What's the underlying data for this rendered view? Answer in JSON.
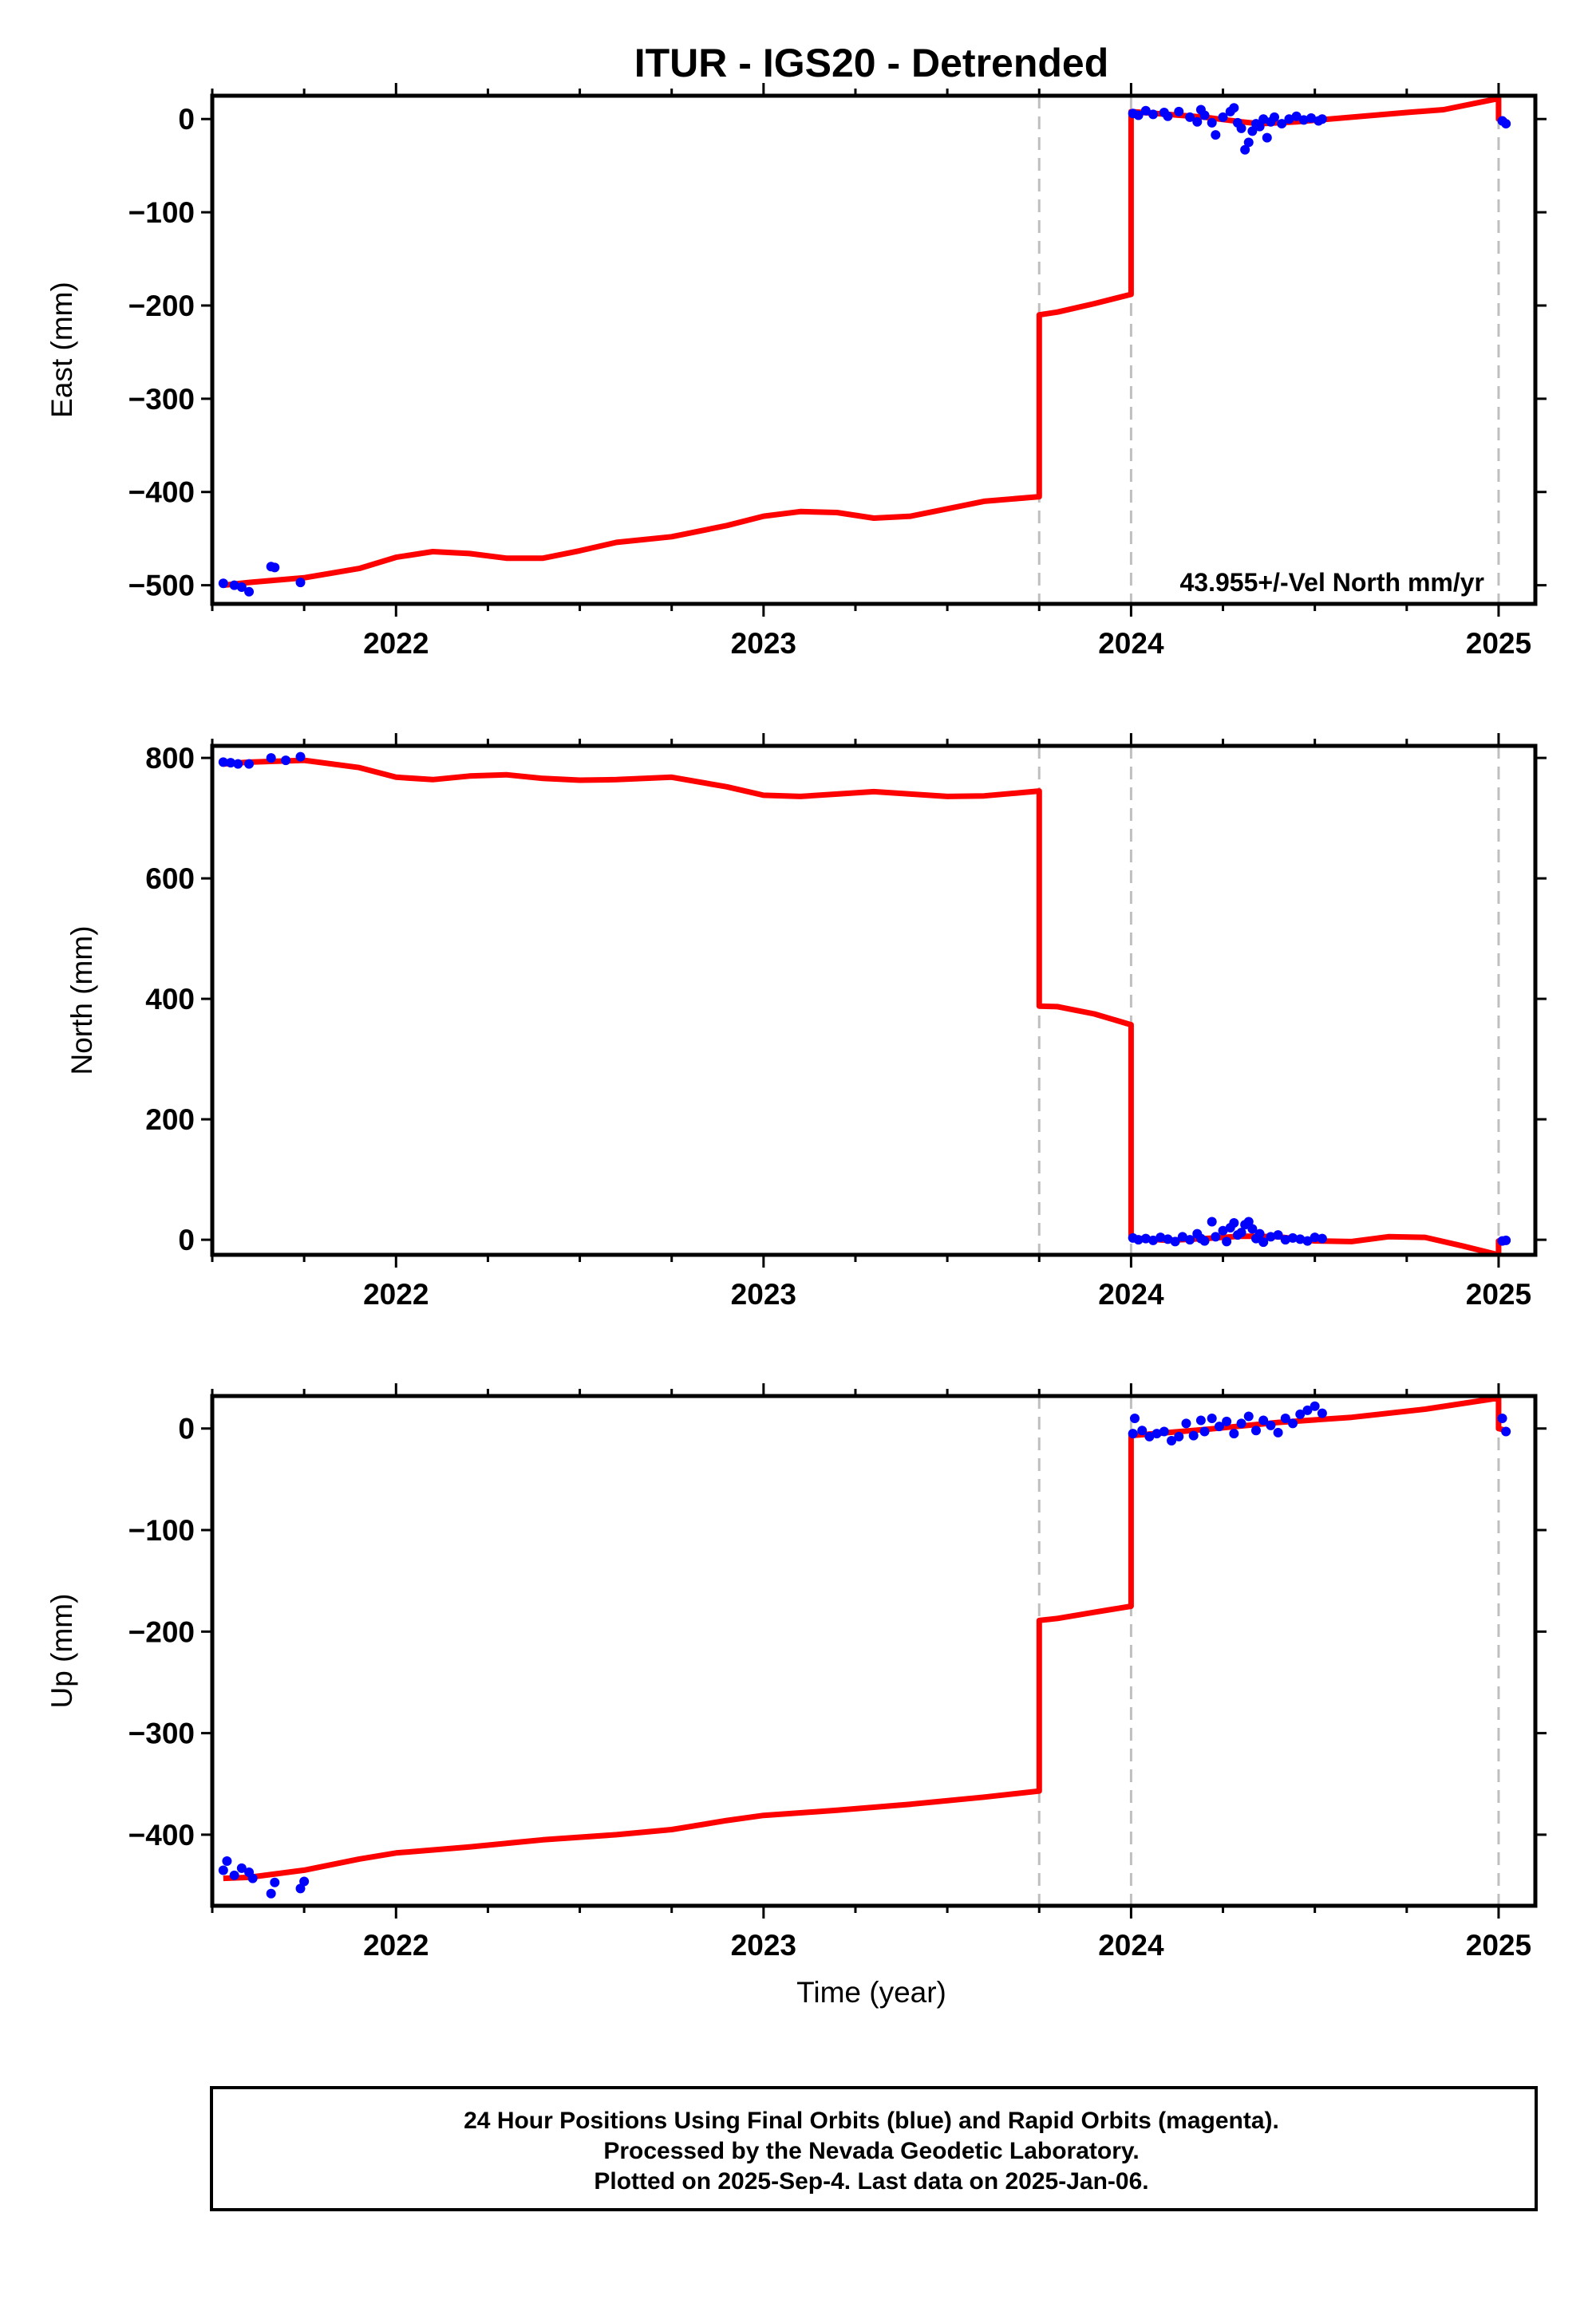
{
  "title": "ITUR - IGS20 - Detrended",
  "xlabel": "Time (year)",
  "x_tick_labels": [
    "2022",
    "2023",
    "2024",
    "2025"
  ],
  "colors": {
    "model_line": "#ff0000",
    "final_orbits": "#0000ff",
    "event_line": "#bfbfbf",
    "frame": "#000000"
  },
  "footer": {
    "line1": "24 Hour Positions Using Final Orbits (blue) and Rapid Orbits (magenta).",
    "line2": "Processed by the Nevada Geodetic Laboratory.",
    "line3": "Plotted on 2025-Sep-4. Last data on 2025-Jan-06."
  },
  "chart_data": [
    {
      "type": "line",
      "name": "east",
      "ylabel": "East (mm)",
      "xlim": [
        2021.5,
        2025.1
      ],
      "ylim": [
        -520,
        25
      ],
      "yticks": [
        0,
        -100,
        -200,
        -300,
        -400,
        -500
      ],
      "ytick_labels": [
        "0",
        "−100",
        "−200",
        "−300",
        "−400",
        "−500"
      ],
      "annotation": "43.955+/-Vel North mm/yr",
      "event_lines": [
        2023.75,
        2024.0,
        2025.0
      ],
      "model": [
        [
          2021.53,
          -500
        ],
        [
          2021.6,
          -497
        ],
        [
          2021.75,
          -492
        ],
        [
          2021.9,
          -482
        ],
        [
          2022.0,
          -470
        ],
        [
          2022.1,
          -464
        ],
        [
          2022.2,
          -466
        ],
        [
          2022.3,
          -471
        ],
        [
          2022.4,
          -471
        ],
        [
          2022.5,
          -463
        ],
        [
          2022.6,
          -454
        ],
        [
          2022.75,
          -448
        ],
        [
          2022.9,
          -436
        ],
        [
          2023.0,
          -426
        ],
        [
          2023.1,
          -421
        ],
        [
          2023.2,
          -422
        ],
        [
          2023.3,
          -428
        ],
        [
          2023.4,
          -426
        ],
        [
          2023.5,
          -418
        ],
        [
          2023.6,
          -410
        ],
        [
          2023.75,
          -405
        ],
        [
          2023.75,
          -210
        ],
        [
          2023.8,
          -207
        ],
        [
          2023.9,
          -198
        ],
        [
          2024.0,
          -188
        ],
        [
          2024.0,
          8
        ],
        [
          2024.1,
          5
        ],
        [
          2024.2,
          2
        ],
        [
          2024.3,
          -3
        ],
        [
          2024.35,
          -5
        ],
        [
          2024.45,
          -3
        ],
        [
          2024.6,
          2
        ],
        [
          2024.75,
          7
        ],
        [
          2024.85,
          10
        ],
        [
          2024.95,
          18
        ],
        [
          2025.0,
          22
        ],
        [
          2025.0,
          0
        ],
        [
          2025.02,
          -2
        ]
      ],
      "points": [
        [
          2021.53,
          -498
        ],
        [
          2021.56,
          -500
        ],
        [
          2021.58,
          -502
        ],
        [
          2021.6,
          -507
        ],
        [
          2021.66,
          -480
        ],
        [
          2021.67,
          -481
        ],
        [
          2021.74,
          -497
        ],
        [
          2024.005,
          6
        ],
        [
          2024.02,
          4
        ],
        [
          2024.04,
          9
        ],
        [
          2024.06,
          5
        ],
        [
          2024.09,
          7
        ],
        [
          2024.1,
          3
        ],
        [
          2024.13,
          8
        ],
        [
          2024.16,
          2
        ],
        [
          2024.18,
          -3
        ],
        [
          2024.19,
          10
        ],
        [
          2024.2,
          4
        ],
        [
          2024.22,
          -4
        ],
        [
          2024.23,
          -17
        ],
        [
          2024.25,
          2
        ],
        [
          2024.27,
          8
        ],
        [
          2024.28,
          12
        ],
        [
          2024.29,
          -4
        ],
        [
          2024.3,
          -10
        ],
        [
          2024.31,
          -33
        ],
        [
          2024.32,
          -25
        ],
        [
          2024.33,
          -13
        ],
        [
          2024.34,
          -5
        ],
        [
          2024.35,
          -8
        ],
        [
          2024.36,
          0
        ],
        [
          2024.37,
          -20
        ],
        [
          2024.38,
          -3
        ],
        [
          2024.39,
          2
        ],
        [
          2024.41,
          -5
        ],
        [
          2024.43,
          0
        ],
        [
          2024.45,
          3
        ],
        [
          2024.47,
          -1
        ],
        [
          2024.49,
          1
        ],
        [
          2024.51,
          -2
        ],
        [
          2024.52,
          0
        ],
        [
          2025.01,
          -2
        ],
        [
          2025.02,
          -5
        ]
      ]
    },
    {
      "type": "line",
      "name": "north",
      "ylabel": "North (mm)",
      "xlim": [
        2021.5,
        2025.1
      ],
      "ylim": [
        -25,
        820
      ],
      "yticks": [
        0,
        200,
        400,
        600,
        800
      ],
      "ytick_labels": [
        "0",
        "200",
        "400",
        "600",
        "800"
      ],
      "event_lines": [
        2023.75,
        2024.0,
        2025.0
      ],
      "model": [
        [
          2021.53,
          790
        ],
        [
          2021.6,
          793
        ],
        [
          2021.75,
          796
        ],
        [
          2021.9,
          784
        ],
        [
          2022.0,
          768
        ],
        [
          2022.1,
          764
        ],
        [
          2022.2,
          770
        ],
        [
          2022.3,
          772
        ],
        [
          2022.4,
          766
        ],
        [
          2022.5,
          763
        ],
        [
          2022.6,
          764
        ],
        [
          2022.75,
          768
        ],
        [
          2022.9,
          752
        ],
        [
          2023.0,
          738
        ],
        [
          2023.1,
          736
        ],
        [
          2023.2,
          740
        ],
        [
          2023.3,
          744
        ],
        [
          2023.4,
          740
        ],
        [
          2023.5,
          736
        ],
        [
          2023.6,
          737
        ],
        [
          2023.75,
          745
        ],
        [
          2023.75,
          388
        ],
        [
          2023.8,
          387
        ],
        [
          2023.9,
          375
        ],
        [
          2024.0,
          357
        ],
        [
          2024.0,
          3
        ],
        [
          2024.1,
          -1
        ],
        [
          2024.2,
          2
        ],
        [
          2024.3,
          6
        ],
        [
          2024.4,
          5
        ],
        [
          2024.5,
          -2
        ],
        [
          2024.6,
          -3
        ],
        [
          2024.7,
          5
        ],
        [
          2024.8,
          4
        ],
        [
          2024.9,
          -10
        ],
        [
          2025.0,
          -25
        ],
        [
          2025.0,
          -2
        ],
        [
          2025.02,
          -1
        ]
      ],
      "points": [
        [
          2021.53,
          793
        ],
        [
          2021.55,
          792
        ],
        [
          2021.57,
          790
        ],
        [
          2021.6,
          790
        ],
        [
          2021.66,
          800
        ],
        [
          2021.7,
          796
        ],
        [
          2021.74,
          802
        ],
        [
          2024.005,
          3
        ],
        [
          2024.02,
          0
        ],
        [
          2024.04,
          2
        ],
        [
          2024.06,
          -1
        ],
        [
          2024.08,
          4
        ],
        [
          2024.1,
          1
        ],
        [
          2024.12,
          -3
        ],
        [
          2024.14,
          5
        ],
        [
          2024.16,
          0
        ],
        [
          2024.18,
          10
        ],
        [
          2024.19,
          2
        ],
        [
          2024.2,
          -2
        ],
        [
          2024.22,
          30
        ],
        [
          2024.23,
          5
        ],
        [
          2024.25,
          15
        ],
        [
          2024.26,
          -3
        ],
        [
          2024.27,
          20
        ],
        [
          2024.28,
          28
        ],
        [
          2024.29,
          8
        ],
        [
          2024.3,
          12
        ],
        [
          2024.31,
          25
        ],
        [
          2024.32,
          30
        ],
        [
          2024.33,
          18
        ],
        [
          2024.34,
          2
        ],
        [
          2024.35,
          10
        ],
        [
          2024.36,
          -4
        ],
        [
          2024.38,
          5
        ],
        [
          2024.4,
          8
        ],
        [
          2024.42,
          0
        ],
        [
          2024.44,
          3
        ],
        [
          2024.46,
          1
        ],
        [
          2024.48,
          -2
        ],
        [
          2024.5,
          4
        ],
        [
          2024.52,
          2
        ],
        [
          2025.01,
          -2
        ],
        [
          2025.02,
          -1
        ]
      ]
    },
    {
      "type": "line",
      "name": "up",
      "ylabel": "Up (mm)",
      "xlim": [
        2021.5,
        2025.1
      ],
      "ylim": [
        -470,
        32
      ],
      "yticks": [
        0,
        -100,
        -200,
        -300,
        -400
      ],
      "ytick_labels": [
        "0",
        "−100",
        "−200",
        "−300",
        "−400"
      ],
      "event_lines": [
        2023.75,
        2024.0,
        2025.0
      ],
      "model": [
        [
          2021.53,
          -443
        ],
        [
          2021.6,
          -442
        ],
        [
          2021.75,
          -435
        ],
        [
          2021.9,
          -424
        ],
        [
          2022.0,
          -418
        ],
        [
          2022.2,
          -412
        ],
        [
          2022.4,
          -405
        ],
        [
          2022.6,
          -400
        ],
        [
          2022.75,
          -395
        ],
        [
          2022.9,
          -386
        ],
        [
          2023.0,
          -381
        ],
        [
          2023.2,
          -376
        ],
        [
          2023.4,
          -370
        ],
        [
          2023.6,
          -363
        ],
        [
          2023.75,
          -357
        ],
        [
          2023.75,
          -189
        ],
        [
          2023.8,
          -187
        ],
        [
          2023.9,
          -181
        ],
        [
          2024.0,
          -175
        ],
        [
          2024.0,
          -7
        ],
        [
          2024.2,
          -1
        ],
        [
          2024.4,
          6
        ],
        [
          2024.6,
          11
        ],
        [
          2024.8,
          19
        ],
        [
          2025.0,
          30
        ],
        [
          2025.0,
          0
        ],
        [
          2025.02,
          -2
        ]
      ],
      "points": [
        [
          2021.53,
          -435
        ],
        [
          2021.54,
          -426
        ],
        [
          2021.56,
          -440
        ],
        [
          2021.58,
          -433
        ],
        [
          2021.6,
          -437
        ],
        [
          2021.61,
          -443
        ],
        [
          2021.66,
          -458
        ],
        [
          2021.67,
          -447
        ],
        [
          2021.74,
          -453
        ],
        [
          2021.75,
          -446
        ],
        [
          2024.005,
          -5
        ],
        [
          2024.01,
          10
        ],
        [
          2024.03,
          -2
        ],
        [
          2024.05,
          -8
        ],
        [
          2024.07,
          -5
        ],
        [
          2024.09,
          -3
        ],
        [
          2024.11,
          -12
        ],
        [
          2024.13,
          -8
        ],
        [
          2024.15,
          5
        ],
        [
          2024.17,
          -7
        ],
        [
          2024.19,
          8
        ],
        [
          2024.2,
          -3
        ],
        [
          2024.22,
          10
        ],
        [
          2024.24,
          2
        ],
        [
          2024.26,
          7
        ],
        [
          2024.28,
          -5
        ],
        [
          2024.3,
          5
        ],
        [
          2024.32,
          12
        ],
        [
          2024.34,
          -2
        ],
        [
          2024.36,
          8
        ],
        [
          2024.38,
          3
        ],
        [
          2024.4,
          -4
        ],
        [
          2024.42,
          10
        ],
        [
          2024.44,
          5
        ],
        [
          2024.46,
          14
        ],
        [
          2024.48,
          18
        ],
        [
          2024.5,
          22
        ],
        [
          2024.52,
          15
        ],
        [
          2025.01,
          10
        ],
        [
          2025.02,
          -3
        ]
      ]
    }
  ]
}
